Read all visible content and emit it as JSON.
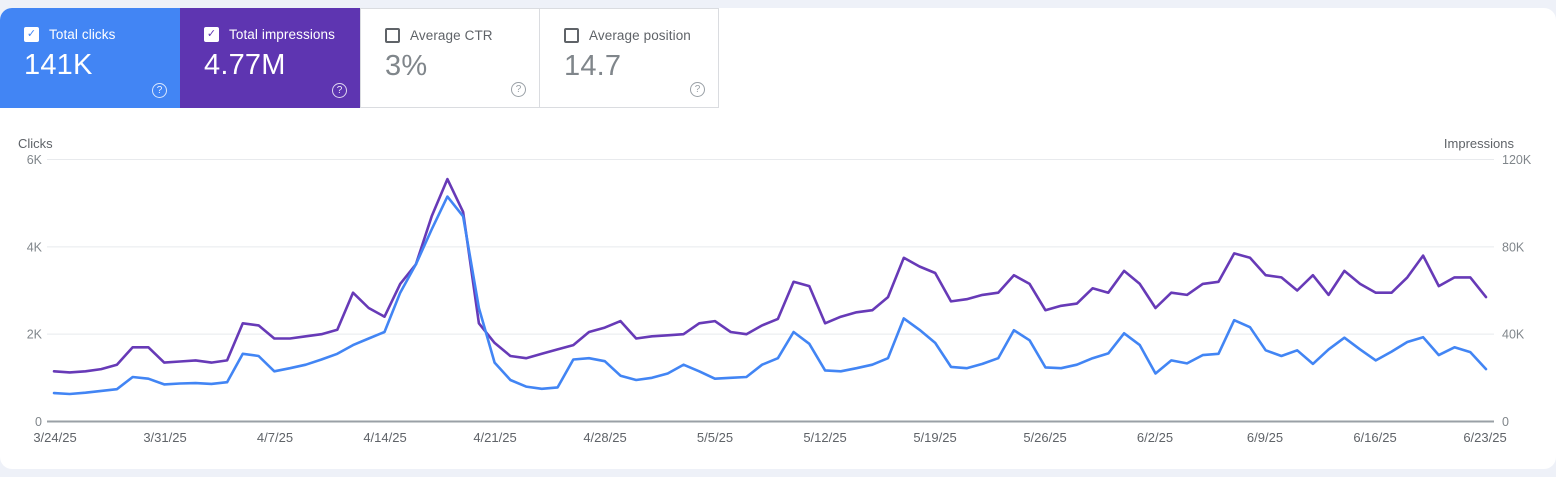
{
  "cards": [
    {
      "label": "Total clicks",
      "value": "141K",
      "checked": true,
      "bg": "#4285f4",
      "help_icon": "?"
    },
    {
      "label": "Total impressions",
      "value": "4.77M",
      "checked": true,
      "bg": "#5e35b1",
      "help_icon": "?"
    },
    {
      "label": "Average CTR",
      "value": "3%",
      "checked": false,
      "bg": "#ffffff",
      "help_icon": "?"
    },
    {
      "label": "Average position",
      "value": "14.7",
      "checked": false,
      "bg": "#ffffff",
      "help_icon": "?"
    }
  ],
  "chart_data": {
    "type": "line",
    "grid": "horizontal",
    "left_axis": {
      "title": "Clicks",
      "ticks": [
        "0",
        "2K",
        "4K",
        "6K"
      ],
      "max": 6000
    },
    "right_axis": {
      "title": "Impressions",
      "ticks": [
        "0",
        "40K",
        "80K",
        "120K"
      ],
      "max": 120000
    },
    "x_tick_labels": [
      "3/24/25",
      "3/31/25",
      "4/7/25",
      "4/14/25",
      "4/21/25",
      "4/28/25",
      "5/5/25",
      "5/12/25",
      "5/19/25",
      "5/26/25",
      "6/2/25",
      "6/9/25",
      "6/16/25",
      "6/23/25"
    ],
    "x_dates": [
      "3/24",
      "3/25",
      "3/26",
      "3/27",
      "3/28",
      "3/29",
      "3/30",
      "3/31",
      "4/1",
      "4/2",
      "4/3",
      "4/4",
      "4/5",
      "4/6",
      "4/7",
      "4/8",
      "4/9",
      "4/10",
      "4/11",
      "4/12",
      "4/13",
      "4/14",
      "4/15",
      "4/16",
      "4/17",
      "4/18",
      "4/19",
      "4/20",
      "4/21",
      "4/22",
      "4/23",
      "4/24",
      "4/25",
      "4/26",
      "4/27",
      "4/28",
      "4/29",
      "4/30",
      "5/1",
      "5/2",
      "5/3",
      "5/4",
      "5/5",
      "5/6",
      "5/7",
      "5/8",
      "5/9",
      "5/10",
      "5/11",
      "5/12",
      "5/13",
      "5/14",
      "5/15",
      "5/16",
      "5/17",
      "5/18",
      "5/19",
      "5/20",
      "5/21",
      "5/22",
      "5/23",
      "5/24",
      "5/25",
      "5/26",
      "5/27",
      "5/28",
      "5/29",
      "5/30",
      "5/31",
      "6/1",
      "6/2",
      "6/3",
      "6/4",
      "6/5",
      "6/6",
      "6/7",
      "6/8",
      "6/9",
      "6/10",
      "6/11",
      "6/12",
      "6/13",
      "6/14",
      "6/15",
      "6/16",
      "6/17",
      "6/18",
      "6/19",
      "6/20",
      "6/21",
      "6/22",
      "6/23"
    ],
    "series": [
      {
        "name": "Clicks",
        "axis": "left",
        "color": "#4285f4",
        "values": [
          650,
          630,
          660,
          700,
          740,
          1020,
          980,
          850,
          870,
          880,
          860,
          900,
          1550,
          1500,
          1150,
          1220,
          1300,
          1420,
          1550,
          1750,
          1900,
          2050,
          2950,
          3600,
          4400,
          5150,
          4700,
          2600,
          1350,
          950,
          800,
          750,
          780,
          1420,
          1450,
          1380,
          1050,
          950,
          1000,
          1100,
          1300,
          1150,
          980,
          1000,
          1020,
          1300,
          1450,
          2050,
          1780,
          1170,
          1150,
          1220,
          1300,
          1450,
          2360,
          2100,
          1800,
          1250,
          1220,
          1320,
          1450,
          2090,
          1860,
          1240,
          1220,
          1300,
          1450,
          1560,
          2020,
          1750,
          1100,
          1400,
          1330,
          1520,
          1550,
          2320,
          2160,
          1630,
          1500,
          1630,
          1320,
          1650,
          1920,
          1650,
          1400,
          1600,
          1820,
          1930,
          1520,
          1700,
          1590,
          1200
        ]
      },
      {
        "name": "Impressions",
        "axis": "right",
        "color": "#673ab7",
        "values": [
          23000,
          22500,
          23000,
          24000,
          26000,
          34000,
          34000,
          27000,
          27500,
          28000,
          27000,
          28000,
          45000,
          44000,
          38000,
          38000,
          39000,
          40000,
          42000,
          59000,
          52000,
          48000,
          63000,
          72000,
          94000,
          111000,
          96000,
          45000,
          36000,
          30000,
          29000,
          31000,
          33000,
          35000,
          41000,
          43000,
          46000,
          38000,
          39000,
          39500,
          40000,
          45000,
          46000,
          41000,
          40000,
          44000,
          47000,
          64000,
          62000,
          45000,
          48000,
          50000,
          51000,
          57000,
          75000,
          71000,
          68000,
          55000,
          56000,
          58000,
          59000,
          67000,
          63000,
          51000,
          53000,
          54000,
          61000,
          59000,
          69000,
          63000,
          52000,
          59000,
          58000,
          63000,
          64000,
          77000,
          75000,
          67000,
          66000,
          60000,
          67000,
          58000,
          69000,
          63000,
          59000,
          59000,
          66000,
          76000,
          62000,
          66000,
          66000,
          57000
        ]
      }
    ]
  }
}
